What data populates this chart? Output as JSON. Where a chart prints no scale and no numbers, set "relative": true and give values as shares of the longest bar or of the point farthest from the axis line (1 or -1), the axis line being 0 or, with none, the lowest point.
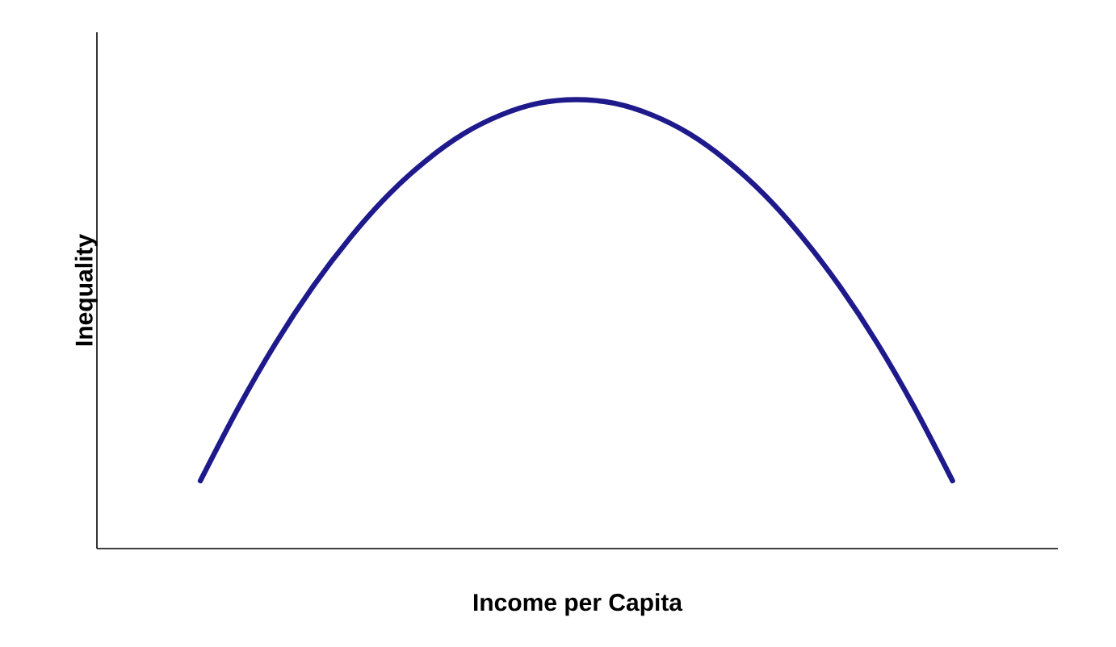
{
  "chart_data": {
    "type": "line",
    "relative": true,
    "xlabel": "Income per Capita",
    "ylabel": "Inequality",
    "categories": [
      null,
      null,
      null,
      null,
      null,
      null,
      null,
      null,
      null,
      null,
      null,
      null,
      null,
      null,
      null,
      null,
      null,
      null,
      null,
      null,
      null
    ],
    "series": [
      {
        "color": "#1f1a8c",
        "values": [
          0.151,
          0.312,
          0.457,
          0.584,
          0.694,
          0.788,
          0.864,
          0.924,
          0.966,
          0.992,
          1,
          0.992,
          0.966,
          0.924,
          0.864,
          0.788,
          0.694,
          0.584,
          0.457,
          0.312,
          0.151
        ]
      }
    ],
    "marker": "none",
    "line_style": "solid"
  }
}
